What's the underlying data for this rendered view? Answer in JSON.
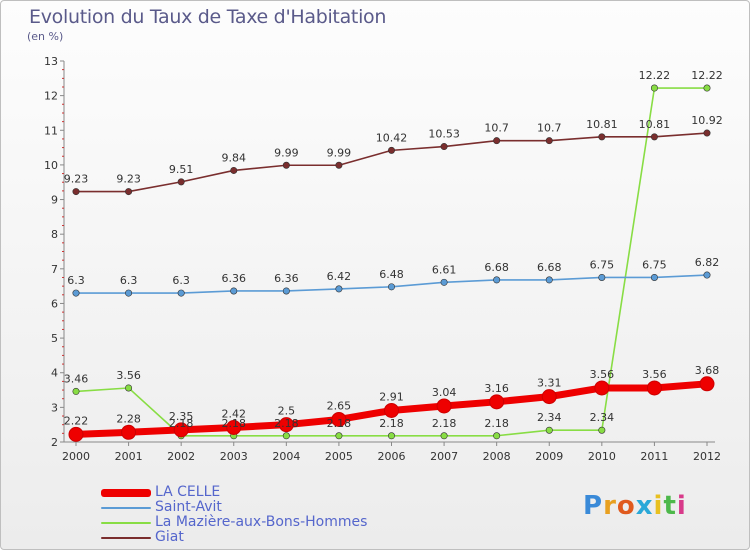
{
  "header": {
    "title": "Evolution du Taux de Taxe d'Habitation",
    "subtitle": "(en %)"
  },
  "logo": {
    "text": "Proxiti"
  },
  "chart_data": {
    "type": "line",
    "title": "Evolution du Taux de Taxe d'Habitation",
    "ylabel": "(en %)",
    "xlabel": "",
    "x": [
      "2000",
      "2001",
      "2002",
      "2003",
      "2004",
      "2005",
      "2006",
      "2007",
      "2008",
      "2009",
      "2010",
      "2011",
      "2012"
    ],
    "ylim": [
      2,
      13
    ],
    "yticks": [
      "2",
      "3",
      "4",
      "5",
      "6",
      "7",
      "8",
      "9",
      "10",
      "11",
      "12",
      "13"
    ],
    "grid": false,
    "legend_position": "bottom-left",
    "series": [
      {
        "name": "LA CELLE",
        "color": "#ee0000",
        "values": [
          2.22,
          2.28,
          2.35,
          2.42,
          2.5,
          2.65,
          2.91,
          3.04,
          3.16,
          3.31,
          3.56,
          3.56,
          3.68
        ],
        "labels": [
          "2.22",
          "2.28",
          "2.35",
          "2.42",
          "2.5",
          "2.65",
          "2.91",
          "3.04",
          "3.16",
          "3.31",
          "3.56",
          "3.56",
          "3.68"
        ]
      },
      {
        "name": "Saint-Avit",
        "color": "#5b9bd5",
        "values": [
          6.3,
          6.3,
          6.3,
          6.36,
          6.36,
          6.42,
          6.48,
          6.61,
          6.68,
          6.68,
          6.75,
          6.75,
          6.82
        ],
        "labels": [
          "6.3",
          "6.3",
          "6.3",
          "6.36",
          "6.36",
          "6.42",
          "6.48",
          "6.61",
          "6.68",
          "6.68",
          "6.75",
          "6.75",
          "6.82"
        ]
      },
      {
        "name": "La Mazière-aux-Bons-Hommes",
        "color": "#88dd44",
        "values": [
          3.46,
          3.56,
          2.18,
          2.18,
          2.18,
          2.18,
          2.18,
          2.18,
          2.18,
          2.34,
          2.34,
          12.22,
          12.22
        ],
        "labels": [
          "3.46",
          "3.56",
          "2.18",
          "2.18",
          "2.18",
          "2.18",
          "2.18",
          "2.18",
          "2.18",
          "2.34",
          "2.34",
          "12.22",
          "12.22"
        ]
      },
      {
        "name": "Giat",
        "color": "#7a2e2e",
        "values": [
          9.23,
          9.23,
          9.51,
          9.84,
          9.99,
          9.99,
          10.42,
          10.53,
          10.7,
          10.7,
          10.81,
          10.81,
          10.92
        ],
        "labels": [
          "9.23",
          "9.23",
          "9.51",
          "9.84",
          "9.99",
          "9.99",
          "10.42",
          "10.53",
          "10.7",
          "10.7",
          "10.81",
          "10.81",
          "10.92"
        ]
      }
    ]
  }
}
